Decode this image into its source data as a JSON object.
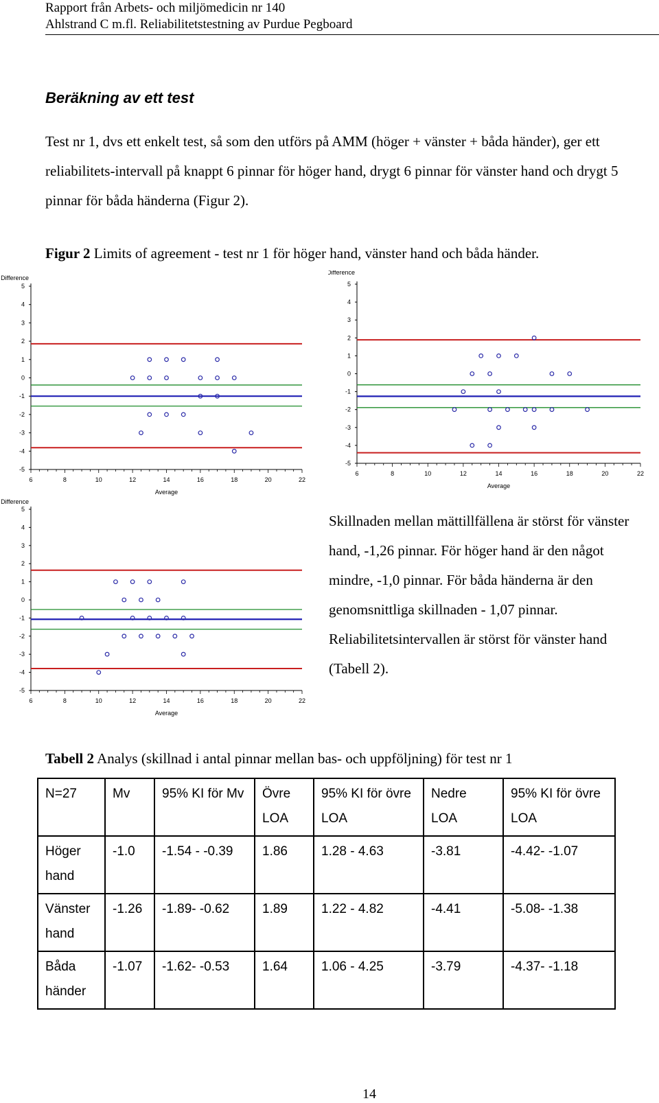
{
  "header": {
    "line1": "Rapport från Arbets- och miljömedicin nr 140",
    "line2": "Ahlstrand C m.fl. Reliabilitetstestning av Purdue Pegboard"
  },
  "section_title": "Beräkning av ett test",
  "intro_text": "Test nr 1, dvs ett enkelt test, så som den utförs på AMM (höger + vänster + båda händer), ger ett reliabilitets-intervall på knappt 6 pinnar för höger hand, drygt 6 pinnar för vänster hand och drygt 5 pinnar för båda händerna (Figur 2).",
  "figure_caption": {
    "label": "Figur 2",
    "text": " Limits of agreement - test nr 1 för höger hand, vänster hand och båda händer."
  },
  "chart_data": [
    {
      "type": "scatter",
      "ylabel": "Difference",
      "xlabel": "Average",
      "xlim": [
        6,
        22
      ],
      "ylim": [
        -5,
        5
      ],
      "x_ticks": [
        "6",
        "8",
        "10",
        "12",
        "14",
        "16",
        "18",
        "20",
        "22"
      ],
      "y_ticks": [
        "5",
        "4",
        "3",
        "2",
        "1",
        "0",
        "-1",
        "-2",
        "-3",
        "-4",
        "-5"
      ],
      "mean_line": -1.0,
      "upper_loa": 1.86,
      "lower_loa": -3.81,
      "ci_lines": [
        -0.39,
        -1.54
      ],
      "points": [
        [
          13,
          1
        ],
        [
          14,
          1
        ],
        [
          15,
          1
        ],
        [
          17,
          1
        ],
        [
          12,
          0
        ],
        [
          13,
          0
        ],
        [
          14,
          0
        ],
        [
          16,
          0
        ],
        [
          17,
          0
        ],
        [
          18,
          0
        ],
        [
          16,
          -1
        ],
        [
          17,
          -1
        ],
        [
          13,
          -2
        ],
        [
          14,
          -2
        ],
        [
          15,
          -2
        ],
        [
          12.5,
          -3
        ],
        [
          16,
          -3
        ],
        [
          19,
          -3
        ],
        [
          18,
          -4
        ]
      ],
      "colors": {
        "mean": "#1f1fb4",
        "loa": "#c81e1e",
        "ci": "#1e8c2a",
        "points": "#2a2aa8"
      }
    },
    {
      "type": "scatter",
      "ylabel": "Difference",
      "xlabel": "Average",
      "xlim": [
        6,
        22
      ],
      "ylim": [
        -5,
        5
      ],
      "x_ticks": [
        "6",
        "8",
        "10",
        "12",
        "14",
        "16",
        "18",
        "20",
        "22"
      ],
      "y_ticks": [
        "5",
        "4",
        "3",
        "2",
        "1",
        "0",
        "-1",
        "-2",
        "-3",
        "-4",
        "-5"
      ],
      "mean_line": -1.26,
      "upper_loa": 1.89,
      "lower_loa": -4.41,
      "ci_lines": [
        -0.62,
        -1.89
      ],
      "points": [
        [
          16,
          2
        ],
        [
          13,
          1
        ],
        [
          14,
          1
        ],
        [
          15,
          1
        ],
        [
          12.5,
          0
        ],
        [
          13.5,
          0
        ],
        [
          17,
          0
        ],
        [
          18,
          0
        ],
        [
          12,
          -1
        ],
        [
          14,
          -1
        ],
        [
          11.5,
          -2
        ],
        [
          13.5,
          -2
        ],
        [
          14.5,
          -2
        ],
        [
          15.5,
          -2
        ],
        [
          16,
          -2
        ],
        [
          17,
          -2
        ],
        [
          19,
          -2
        ],
        [
          14,
          -3
        ],
        [
          16,
          -3
        ],
        [
          12.5,
          -4
        ],
        [
          13.5,
          -4
        ]
      ],
      "colors": {
        "mean": "#1f1fb4",
        "loa": "#c81e1e",
        "ci": "#1e8c2a",
        "points": "#2a2aa8"
      }
    },
    {
      "type": "scatter",
      "ylabel": "Difference",
      "xlabel": "Average",
      "xlim": [
        6,
        22
      ],
      "ylim": [
        -5,
        5
      ],
      "x_ticks": [
        "6",
        "8",
        "10",
        "12",
        "14",
        "16",
        "18",
        "20",
        "22"
      ],
      "y_ticks": [
        "5",
        "4",
        "3",
        "2",
        "1",
        "0",
        "-1",
        "-2",
        "-3",
        "-4",
        "-5"
      ],
      "mean_line": -1.07,
      "upper_loa": 1.64,
      "lower_loa": -3.79,
      "ci_lines": [
        -0.53,
        -1.62
      ],
      "points": [
        [
          11,
          1
        ],
        [
          12,
          1
        ],
        [
          13,
          1
        ],
        [
          15,
          1
        ],
        [
          11.5,
          0
        ],
        [
          12.5,
          0
        ],
        [
          13.5,
          0
        ],
        [
          9,
          -1
        ],
        [
          12,
          -1
        ],
        [
          13,
          -1
        ],
        [
          14,
          -1
        ],
        [
          15,
          -1
        ],
        [
          11.5,
          -2
        ],
        [
          12.5,
          -2
        ],
        [
          13.5,
          -2
        ],
        [
          14.5,
          -2
        ],
        [
          15.5,
          -2
        ],
        [
          10.5,
          -3
        ],
        [
          15,
          -3
        ],
        [
          10,
          -4
        ]
      ],
      "colors": {
        "mean": "#1f1fb4",
        "loa": "#c81e1e",
        "ci": "#1e8c2a",
        "points": "#2a2aa8"
      }
    }
  ],
  "side_text": "Skillnaden mellan mättillfällena är störst för vänster hand, -1,26 pinnar. För höger hand är den något mindre, -1,0 pinnar. För båda händerna är den genomsnittliga skillnaden - 1,07 pinnar. Reliabilitetsintervallen är störst för vänster hand (Tabell 2).",
  "table_caption": {
    "label": "Tabell 2",
    "text": " Analys (skillnad i antal pinnar mellan bas- och uppföljning) för test nr 1"
  },
  "table": {
    "headers": [
      "N=27",
      "Mv",
      "95% KI för Mv",
      "Övre LOA",
      "95% KI för övre LOA",
      "Nedre LOA",
      "95% KI för övre LOA"
    ],
    "rows": [
      [
        "Höger hand",
        "-1.0",
        "-1.54 - -0.39",
        "1.86",
        "1.28 - 4.63",
        "-3.81",
        "-4.42- -1.07"
      ],
      [
        "Vänster hand",
        "-1.26",
        "-1.89- -0.62",
        "1.89",
        "1.22 - 4.82",
        "-4.41",
        "-5.08- -1.38"
      ],
      [
        "Båda händer",
        "-1.07",
        "-1.62- -0.53",
        "1.64",
        "1.06 - 4.25",
        "-3.79",
        "-4.37- -1.18"
      ]
    ]
  },
  "page_number": "14"
}
